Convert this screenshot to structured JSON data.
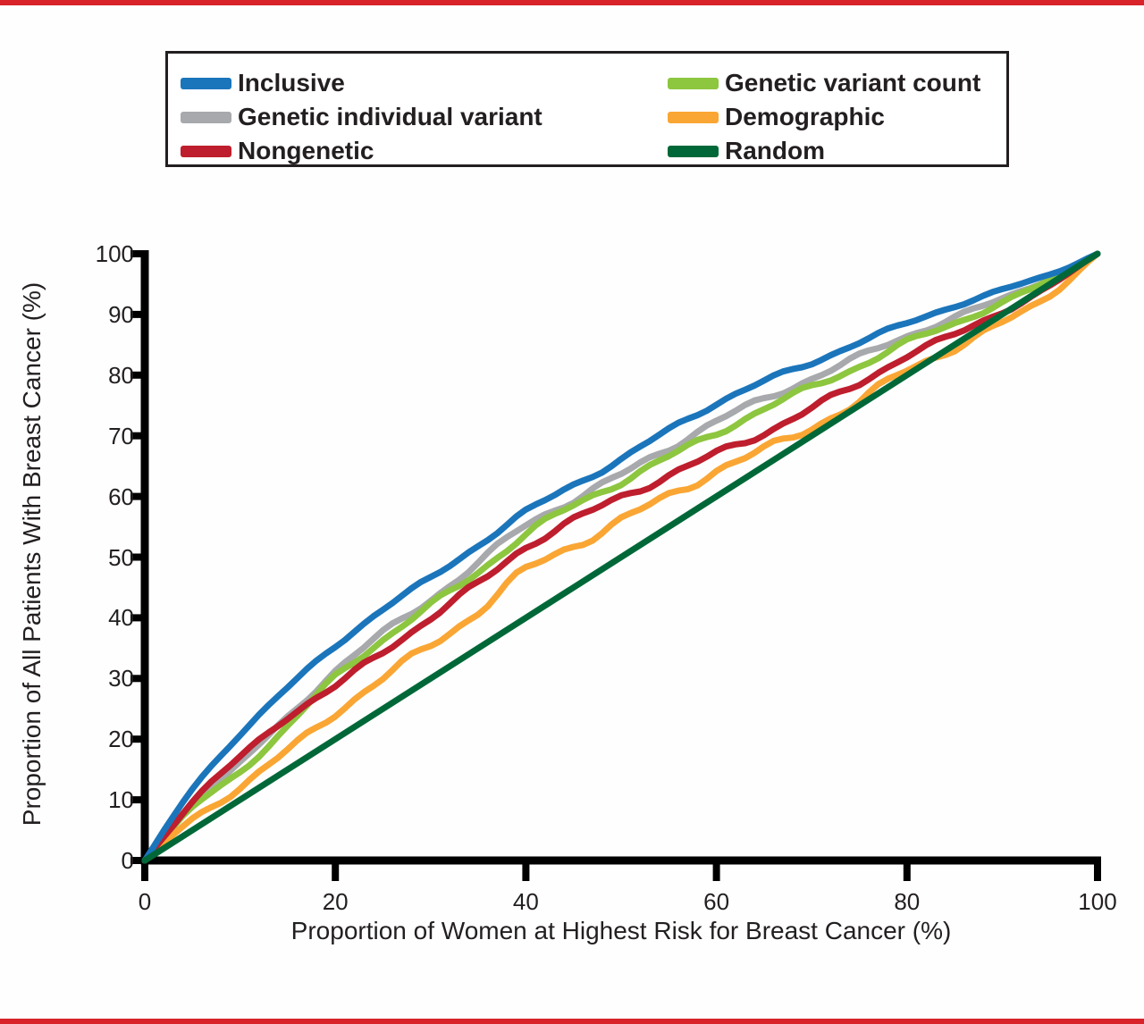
{
  "page": {
    "background": "#fefefe",
    "top_rule_color": "#d8232a",
    "bottom_rule_color": "#d8232a",
    "text_color": "#231f20"
  },
  "legend": {
    "items": [
      {
        "label": "Inclusive"
      },
      {
        "label": "Genetic individual variant"
      },
      {
        "label": "Nongenetic"
      },
      {
        "label": "Genetic variant count"
      },
      {
        "label": "Demographic"
      },
      {
        "label": "Random"
      }
    ]
  },
  "chart_data": {
    "type": "line",
    "title": "",
    "xlabel": "Proportion of Women at Highest Risk for Breast Cancer (%)",
    "ylabel": "Proportion of All Patients With Breast Cancer (%)",
    "xlim": [
      0,
      100
    ],
    "ylim": [
      0,
      100
    ],
    "x_ticks": [
      0,
      20,
      40,
      60,
      80,
      100
    ],
    "y_ticks": [
      0,
      10,
      20,
      30,
      40,
      50,
      60,
      70,
      80,
      90,
      100
    ],
    "grid": false,
    "legend_position": "top",
    "x": [
      0,
      5,
      10,
      15,
      20,
      25,
      30,
      35,
      40,
      45,
      50,
      55,
      60,
      65,
      70,
      75,
      80,
      85,
      90,
      95,
      100
    ],
    "series": [
      {
        "name": "Inclusive",
        "color": "#1b75bb",
        "values": [
          0,
          12,
          21,
          28.5,
          35.5,
          41.5,
          46.5,
          52,
          57.5,
          62,
          66,
          71,
          75.5,
          79,
          82,
          85.5,
          88.5,
          91.5,
          94,
          96.5,
          100
        ]
      },
      {
        "name": "Genetic individual variant",
        "color": "#a7a9ac",
        "values": [
          0,
          9.5,
          16,
          23.5,
          31.5,
          37.5,
          43,
          49,
          55.5,
          59.5,
          63.5,
          68,
          72.5,
          76,
          79.5,
          83,
          86.5,
          89.5,
          92.5,
          96,
          100
        ]
      },
      {
        "name": "Nongenetic",
        "color": "#be1e2d",
        "values": [
          0,
          10,
          17,
          24,
          28.5,
          34.5,
          40,
          45.5,
          52,
          56,
          60,
          63.5,
          67,
          70.5,
          74.5,
          78.5,
          83.5,
          86.5,
          90.5,
          94.5,
          100
        ]
      },
      {
        "name": "Genetic variant count",
        "color": "#8dc63f",
        "values": [
          0,
          9,
          14.5,
          22,
          30.5,
          36.5,
          42,
          47.5,
          54,
          58.5,
          62.5,
          66.5,
          70.5,
          74.5,
          78,
          81.5,
          85.5,
          88.5,
          92,
          95.5,
          100
        ]
      },
      {
        "name": "Demographic",
        "color": "#faa634",
        "values": [
          0,
          7,
          12,
          18,
          24.5,
          30,
          35.5,
          41,
          48,
          52,
          56,
          60,
          64.5,
          67.5,
          71.5,
          75.5,
          81,
          84.5,
          88.5,
          93,
          100
        ]
      },
      {
        "name": "Random",
        "color": "#006838",
        "values": [
          0,
          5,
          10,
          15,
          20,
          25,
          30,
          35,
          40,
          45,
          50,
          55,
          60,
          65,
          70,
          75,
          80,
          85,
          90,
          95,
          100
        ]
      }
    ]
  }
}
